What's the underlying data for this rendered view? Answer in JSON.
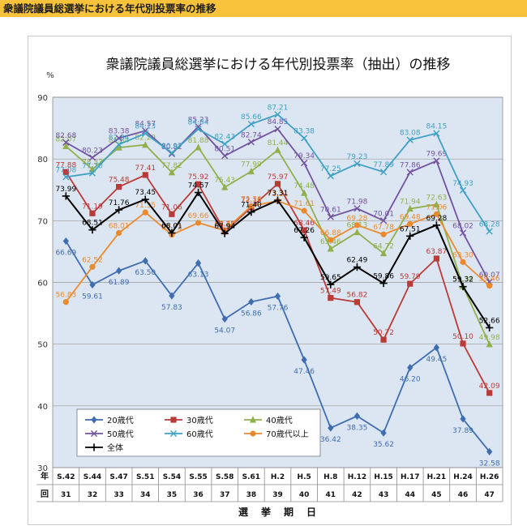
{
  "page": {
    "title": "衆議院議員総選挙における年代別投票率の推移"
  },
  "chart_data": {
    "type": "line",
    "title": "衆議院議員総選挙における年代別投票率（抽出）の推移",
    "ylabel": "%",
    "xlabel": "選　挙　期　日",
    "ylim": [
      30,
      90
    ],
    "yticks": [
      "30",
      "40",
      "50",
      "60",
      "70",
      "80",
      "90"
    ],
    "row1_header": "年",
    "row2_header": "回",
    "categories": [
      "S.42",
      "S.44",
      "S.47",
      "S.51",
      "S.54",
      "S.55",
      "S.58",
      "S.61",
      "H.2",
      "H.5",
      "H.8",
      "H.12",
      "H.15",
      "H.17",
      "H.21",
      "H.24",
      "H.26"
    ],
    "sessions": [
      "31",
      "32",
      "33",
      "34",
      "35",
      "36",
      "37",
      "38",
      "39",
      "40",
      "41",
      "42",
      "43",
      "44",
      "45",
      "46",
      "47"
    ],
    "grid": true,
    "legend_position": "bottom-left",
    "series": [
      {
        "name": "20歳代",
        "color": "#3e6db0",
        "marker": "diamond",
        "values": [
          66.69,
          59.61,
          61.89,
          63.5,
          57.83,
          63.13,
          54.07,
          56.86,
          57.76,
          47.46,
          36.42,
          38.35,
          35.62,
          46.2,
          49.45,
          37.89,
          32.58
        ]
      },
      {
        "name": "30歳代",
        "color": "#b93a36",
        "marker": "square",
        "values": [
          77.88,
          71.19,
          75.48,
          77.41,
          71.06,
          75.92,
          68.25,
          72.15,
          75.97,
          68.46,
          57.49,
          56.82,
          50.72,
          59.79,
          63.87,
          50.1,
          42.09
        ]
      },
      {
        "name": "40歳代",
        "color": "#8fb04a",
        "marker": "triangle",
        "values": [
          82.07,
          78.33,
          81.84,
          82.29,
          77.82,
          81.88,
          75.43,
          77.99,
          81.44,
          74.48,
          65.46,
          68.13,
          64.72,
          71.94,
          72.63,
          59.38,
          49.98
        ]
      },
      {
        "name": "50歳代",
        "color": "#7252a0",
        "marker": "x",
        "values": [
          82.68,
          80.23,
          83.38,
          84.57,
          80.82,
          85.23,
          80.51,
          82.74,
          84.85,
          79.34,
          70.61,
          71.98,
          70.01,
          77.86,
          79.69,
          68.02,
          60.07
        ]
      },
      {
        "name": "60歳代",
        "color": "#3ea0c4",
        "marker": "x",
        "values": [
          77.08,
          77.7,
          82.34,
          84.13,
          80.97,
          84.84,
          82.43,
          85.66,
          87.21,
          83.38,
          77.25,
          79.23,
          77.89,
          83.08,
          84.15,
          74.93,
          68.28
        ]
      },
      {
        "name": "70歳代以上",
        "color": "#ea8a2e",
        "marker": "circle",
        "values": [
          56.83,
          62.52,
          68.01,
          71.35,
          67.72,
          69.66,
          68.41,
          72.36,
          73.21,
          71.61,
          66.88,
          69.28,
          67.78,
          69.48,
          71.06,
          63.3,
          59.46
        ]
      },
      {
        "name": "全体",
        "color": "#000000",
        "marker": "plus",
        "values": [
          73.99,
          68.51,
          71.76,
          73.45,
          68.01,
          74.57,
          67.94,
          71.4,
          73.31,
          67.26,
          59.65,
          62.49,
          59.86,
          67.51,
          69.28,
          59.32,
          52.66
        ]
      }
    ]
  }
}
